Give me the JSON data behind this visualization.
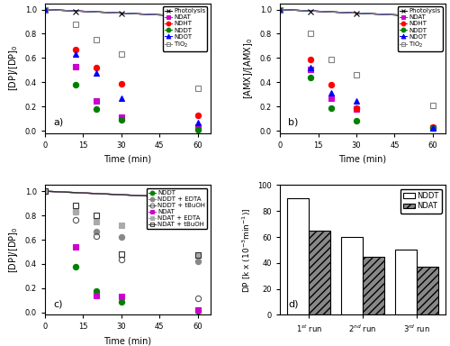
{
  "panel_a": {
    "xlabel": "Time (min)",
    "ylabel": "[DP]/[DP]$_0$",
    "series": {
      "Photolysis": {
        "color": "black",
        "marker": "x",
        "lc": "black",
        "pts": [
          0,
          12,
          30,
          60
        ],
        "vals": [
          1.0,
          0.985,
          0.97,
          0.94
        ],
        "filled": false
      },
      "NDAT": {
        "color": "#cc00cc",
        "marker": "s",
        "lc": "#cc00cc",
        "pts": [
          0,
          12,
          20,
          30,
          60
        ],
        "vals": [
          1.0,
          0.53,
          0.25,
          0.11,
          0.03
        ],
        "filled": true
      },
      "NDHT": {
        "color": "red",
        "marker": "o",
        "lc": "red",
        "pts": [
          0,
          12,
          20,
          30,
          60
        ],
        "vals": [
          1.0,
          0.67,
          0.52,
          0.39,
          0.13
        ],
        "filled": true
      },
      "NDDT": {
        "color": "green",
        "marker": "o",
        "lc": "green",
        "pts": [
          0,
          12,
          20,
          30,
          60
        ],
        "vals": [
          1.0,
          0.38,
          0.18,
          0.09,
          0.01
        ],
        "filled": true
      },
      "NDOT": {
        "color": "blue",
        "marker": "^",
        "lc": "blue",
        "pts": [
          0,
          12,
          20,
          30,
          60
        ],
        "vals": [
          1.0,
          0.63,
          0.48,
          0.27,
          0.07
        ],
        "filled": true
      },
      "TiO2": {
        "color": "gray",
        "marker": "s",
        "lc": "gray",
        "pts": [
          0,
          12,
          20,
          30,
          60
        ],
        "vals": [
          1.0,
          0.88,
          0.75,
          0.63,
          0.35
        ],
        "filled": false
      }
    },
    "legend_order": [
      "Photolysis",
      "NDAT",
      "NDHT",
      "NDDT",
      "NDOT",
      "TiO2"
    ],
    "legend_labels": [
      "Photolysis",
      "NDAT",
      "NDHT",
      "NDDT",
      "NDOT",
      "TiO$_2$"
    ]
  },
  "panel_b": {
    "xlabel": "Time (min)",
    "ylabel": "[AMX]/[AMX]$_0$",
    "series": {
      "Photolysis": {
        "color": "black",
        "marker": "x",
        "lc": "black",
        "pts": [
          0,
          12,
          30,
          60
        ],
        "vals": [
          1.0,
          0.985,
          0.97,
          0.95
        ],
        "filled": false
      },
      "NDAT": {
        "color": "#cc00cc",
        "marker": "s",
        "lc": "#cc00cc",
        "pts": [
          0,
          12,
          20,
          30,
          60
        ],
        "vals": [
          1.0,
          0.51,
          0.27,
          0.18,
          0.02
        ],
        "filled": true
      },
      "NDHT": {
        "color": "red",
        "marker": "o",
        "lc": "red",
        "pts": [
          0,
          12,
          20,
          30,
          60
        ],
        "vals": [
          1.0,
          0.59,
          0.38,
          0.19,
          0.03
        ],
        "filled": true
      },
      "NDDT": {
        "color": "green",
        "marker": "o",
        "lc": "green",
        "pts": [
          0,
          12,
          20,
          30,
          60
        ],
        "vals": [
          1.0,
          0.44,
          0.19,
          0.08,
          0.02
        ],
        "filled": true
      },
      "NDOT": {
        "color": "blue",
        "marker": "^",
        "lc": "blue",
        "pts": [
          0,
          12,
          20,
          30,
          60
        ],
        "vals": [
          1.0,
          0.52,
          0.31,
          0.25,
          0.02
        ],
        "filled": true
      },
      "TiO2": {
        "color": "gray",
        "marker": "s",
        "lc": "gray",
        "pts": [
          0,
          12,
          20,
          30,
          60
        ],
        "vals": [
          1.0,
          0.8,
          0.59,
          0.46,
          0.21
        ],
        "filled": false
      }
    },
    "legend_order": [
      "Photolysis",
      "NDAT",
      "NDHT",
      "NDDT",
      "NDOT",
      "TiO2"
    ],
    "legend_labels": [
      "Photolysis",
      "NDAT",
      "NDHT",
      "NDDT",
      "NDOT",
      "TiO$_2$"
    ]
  },
  "panel_c": {
    "xlabel": "Time (min)",
    "ylabel": "[DP]/[DP]$_0$",
    "series": {
      "NDDT": {
        "color": "green",
        "marker": "o",
        "lc": "green",
        "pts": [
          0,
          12,
          20,
          30,
          60
        ],
        "vals": [
          1.0,
          0.38,
          0.18,
          0.09,
          0.01
        ],
        "filled": true
      },
      "NDDT + EDTA": {
        "color": "#888888",
        "marker": "o",
        "lc": "#888888",
        "pts": [
          0,
          12,
          20,
          30,
          60
        ],
        "vals": [
          1.0,
          0.83,
          0.67,
          0.62,
          0.42
        ],
        "filled": true
      },
      "NDDT + tBuOH": {
        "color": "#555555",
        "marker": "o",
        "lc": "#555555",
        "pts": [
          0,
          12,
          20,
          30,
          60
        ],
        "vals": [
          1.0,
          0.76,
          0.63,
          0.44,
          0.12
        ],
        "filled": false
      },
      "NDAT": {
        "color": "#cc00cc",
        "marker": "s",
        "lc": "#cc00cc",
        "pts": [
          0,
          12,
          20,
          30,
          60
        ],
        "vals": [
          1.0,
          0.54,
          0.14,
          0.13,
          0.02
        ],
        "filled": true
      },
      "NDAT + EDTA": {
        "color": "#aaaaaa",
        "marker": "s",
        "lc": "#aaaaaa",
        "pts": [
          0,
          12,
          20,
          30,
          60
        ],
        "vals": [
          1.0,
          0.83,
          0.75,
          0.72,
          0.47
        ],
        "filled": true
      },
      "NDAT + tBuOH": {
        "color": "#333333",
        "marker": "s",
        "lc": "#333333",
        "pts": [
          0,
          12,
          20,
          30,
          60
        ],
        "vals": [
          1.0,
          0.88,
          0.8,
          0.48,
          0.47
        ],
        "filled": false
      }
    },
    "legend_order": [
      "NDDT",
      "NDDT + EDTA",
      "NDDT + tBuOH",
      "NDAT",
      "NDAT + EDTA",
      "NDAT + tBuOH"
    ],
    "legend_labels": [
      "NDDT",
      "NDDT + EDTA",
      "NDDT + tBuOH",
      "NDAT",
      "NDAT + EDTA",
      "NDAT + tBuOH"
    ]
  },
  "panel_d": {
    "ylabel": "DP [k x (10$^{-3}$min$^{-1}$)]",
    "ylim": [
      0,
      100
    ],
    "yticks": [
      0,
      20,
      40,
      60,
      80,
      100
    ],
    "xtick_labels": [
      "1$^{st}$ run",
      "2$^{nd}$ run",
      "3$^{rd}$ run"
    ],
    "NDDT_vals": [
      90,
      60,
      50
    ],
    "NDAT_vals": [
      65,
      45,
      37
    ],
    "bar_width": 0.4
  }
}
